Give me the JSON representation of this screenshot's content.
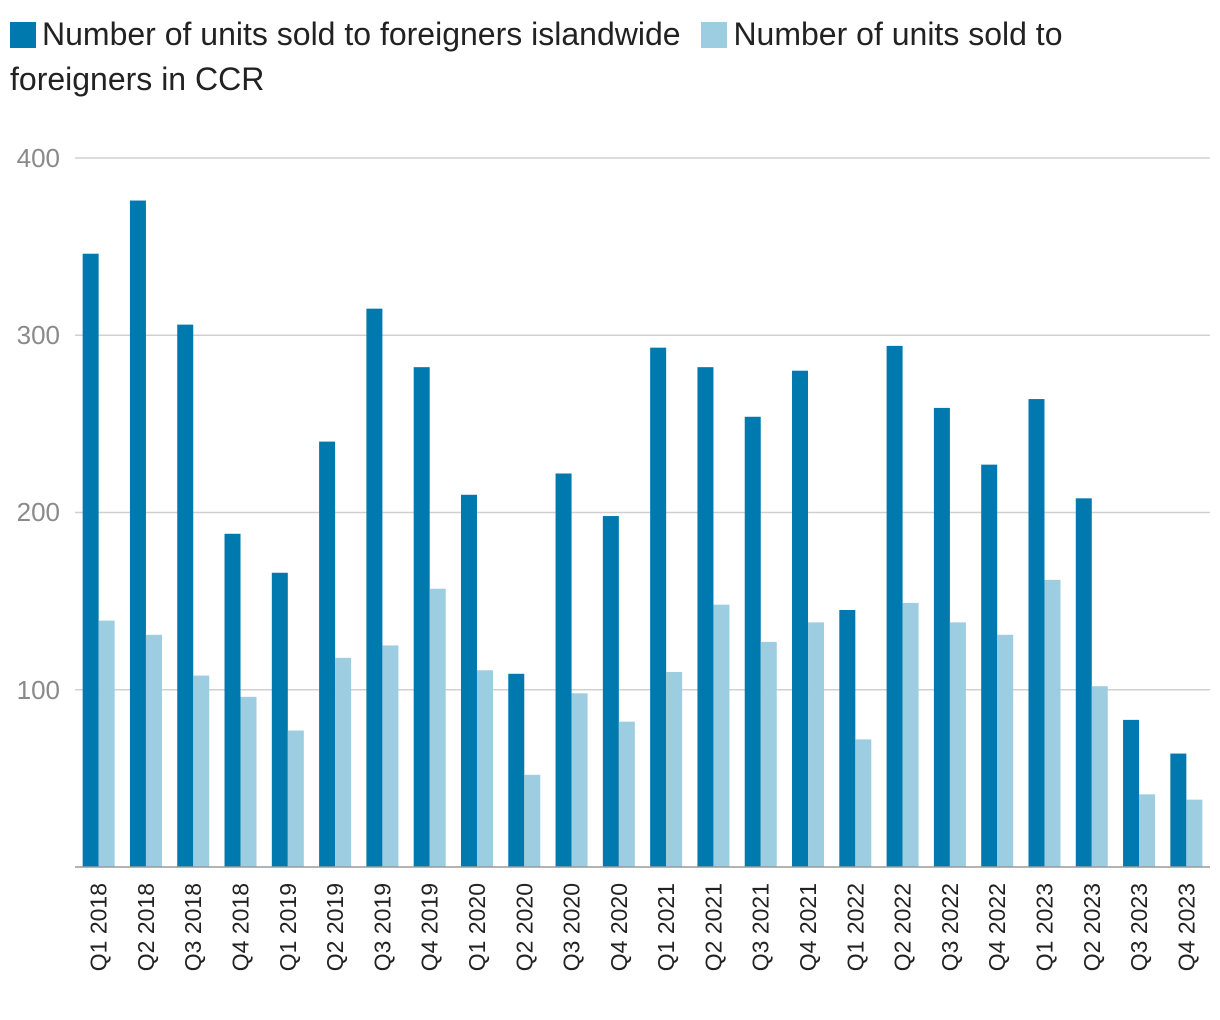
{
  "chart_data": {
    "type": "bar",
    "title": "",
    "xlabel": "",
    "ylabel": "",
    "ylim": [
      0,
      400
    ],
    "yticks": [
      "100",
      "200",
      "300",
      "400"
    ],
    "grid": true,
    "legend_position": "top-left",
    "categories": [
      "Q1 2018",
      "Q2 2018",
      "Q3 2018",
      "Q4 2018",
      "Q1 2019",
      "Q2 2019",
      "Q3 2019",
      "Q4 2019",
      "Q1 2020",
      "Q2 2020",
      "Q3 2020",
      "Q4 2020",
      "Q1 2021",
      "Q2 2021",
      "Q3 2021",
      "Q4 2021",
      "Q1 2022",
      "Q2 2022",
      "Q3 2022",
      "Q4 2022",
      "Q1 2023",
      "Q2 2023",
      "Q3 2023",
      "Q4 2023"
    ],
    "series": [
      {
        "name": "Number of units sold to foreigners islandwide",
        "color": "#0079AE",
        "values": [
          346,
          376,
          306,
          188,
          166,
          240,
          315,
          282,
          210,
          109,
          222,
          198,
          293,
          282,
          254,
          280,
          145,
          294,
          259,
          227,
          264,
          208,
          83,
          64
        ]
      },
      {
        "name": "Number of units sold to foreigners in CCR",
        "color": "#9DCDE0",
        "values": [
          139,
          131,
          108,
          96,
          77,
          118,
          125,
          157,
          111,
          52,
          98,
          82,
          110,
          148,
          127,
          138,
          72,
          149,
          138,
          131,
          162,
          102,
          41,
          38
        ]
      }
    ]
  }
}
